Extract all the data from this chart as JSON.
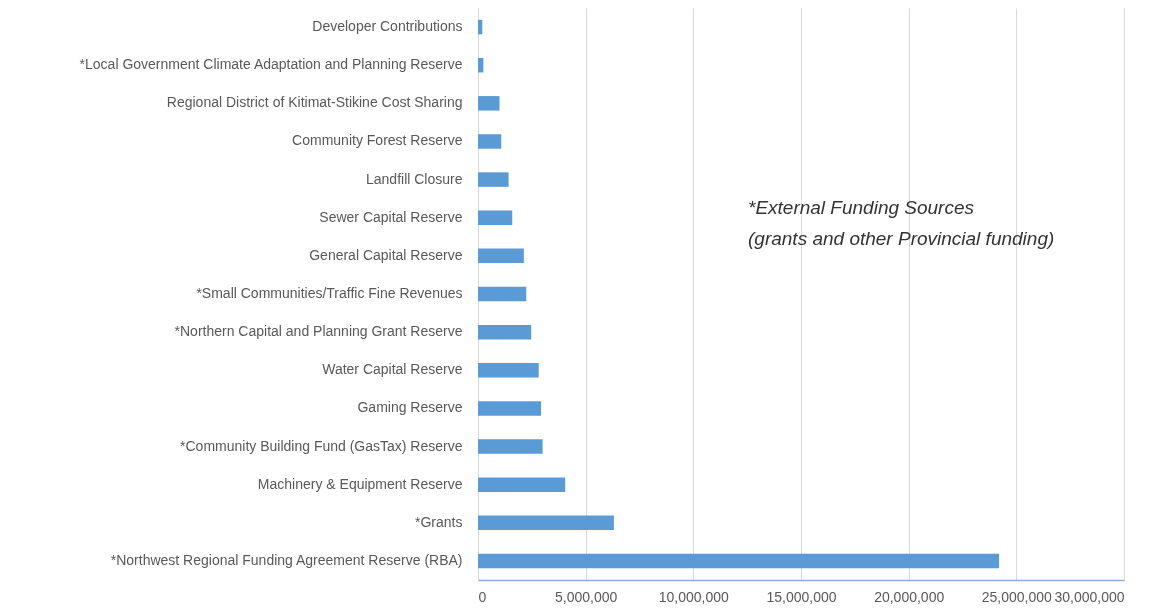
{
  "chart_data": {
    "type": "bar",
    "orientation": "horizontal",
    "categories": [
      "Developer Contributions",
      "*Local Government Climate Adaptation and Planning Reserve",
      "Regional District of Kitimat-Stikine Cost Sharing",
      "Community Forest Reserve",
      "Landfill Closure",
      "Sewer Capital Reserve",
      "General Capital Reserve",
      "*Small Communities/Traffic Fine Revenues",
      "*Northern Capital and Planning Grant Reserve",
      "Water Capital Reserve",
      "Gaming Reserve",
      "*Community Building Fund (GasTax) Reserve",
      "Machinery & Equipment Reserve",
      "*Grants",
      "*Northwest Regional Funding Agreement Reserve (RBA)"
    ],
    "values": [
      200000,
      250000,
      1000000,
      1080000,
      1420000,
      1590000,
      2130000,
      2240000,
      2470000,
      2820000,
      2930000,
      3000000,
      4050000,
      6310000,
      24200000
    ],
    "color": "#5b9bd5",
    "xlim": [
      0,
      30000000
    ],
    "xticks": [
      0,
      {
        "value": 5000000,
        "label": "5,000,000"
      },
      {
        "value": 10000000,
        "label": "10,000,000"
      },
      {
        "value": 15000000,
        "label": "15,000,000"
      },
      {
        "value": 20000000,
        "label": "20,000,000"
      },
      {
        "value": 25000000,
        "label": "25,000,000"
      },
      {
        "value": 30000000,
        "label": "30,000,000"
      }
    ],
    "grid": "x",
    "annotations": [
      "*External Funding Sources",
      "(grants and other Provincial funding)"
    ]
  }
}
